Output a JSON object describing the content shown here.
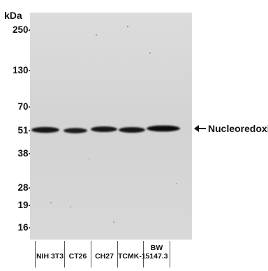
{
  "molecular_weight": {
    "unit": "kDa",
    "markers": [
      {
        "label": "250-",
        "kda": 250
      },
      {
        "label": "130-",
        "kda": 130
      },
      {
        "label": "70-",
        "kda": 70
      },
      {
        "label": "51-",
        "kda": 51
      },
      {
        "label": "38-",
        "kda": 38
      },
      {
        "label": "28-",
        "kda": 28
      },
      {
        "label": "19-",
        "kda": 19
      },
      {
        "label": "16-",
        "kda": 16
      }
    ]
  },
  "target_annotation": {
    "label": "Nucleoredoxin",
    "arrow_icon": "left-arrow-icon"
  },
  "lanes": [
    {
      "label": "NIH 3T3"
    },
    {
      "label": "CT26"
    },
    {
      "label": "CH27"
    },
    {
      "label": "TCMK-1"
    },
    {
      "label": "BW 5147.3"
    }
  ],
  "colors": {
    "membrane": "#d6d6d6",
    "band": "#111111",
    "text": "#111111"
  }
}
